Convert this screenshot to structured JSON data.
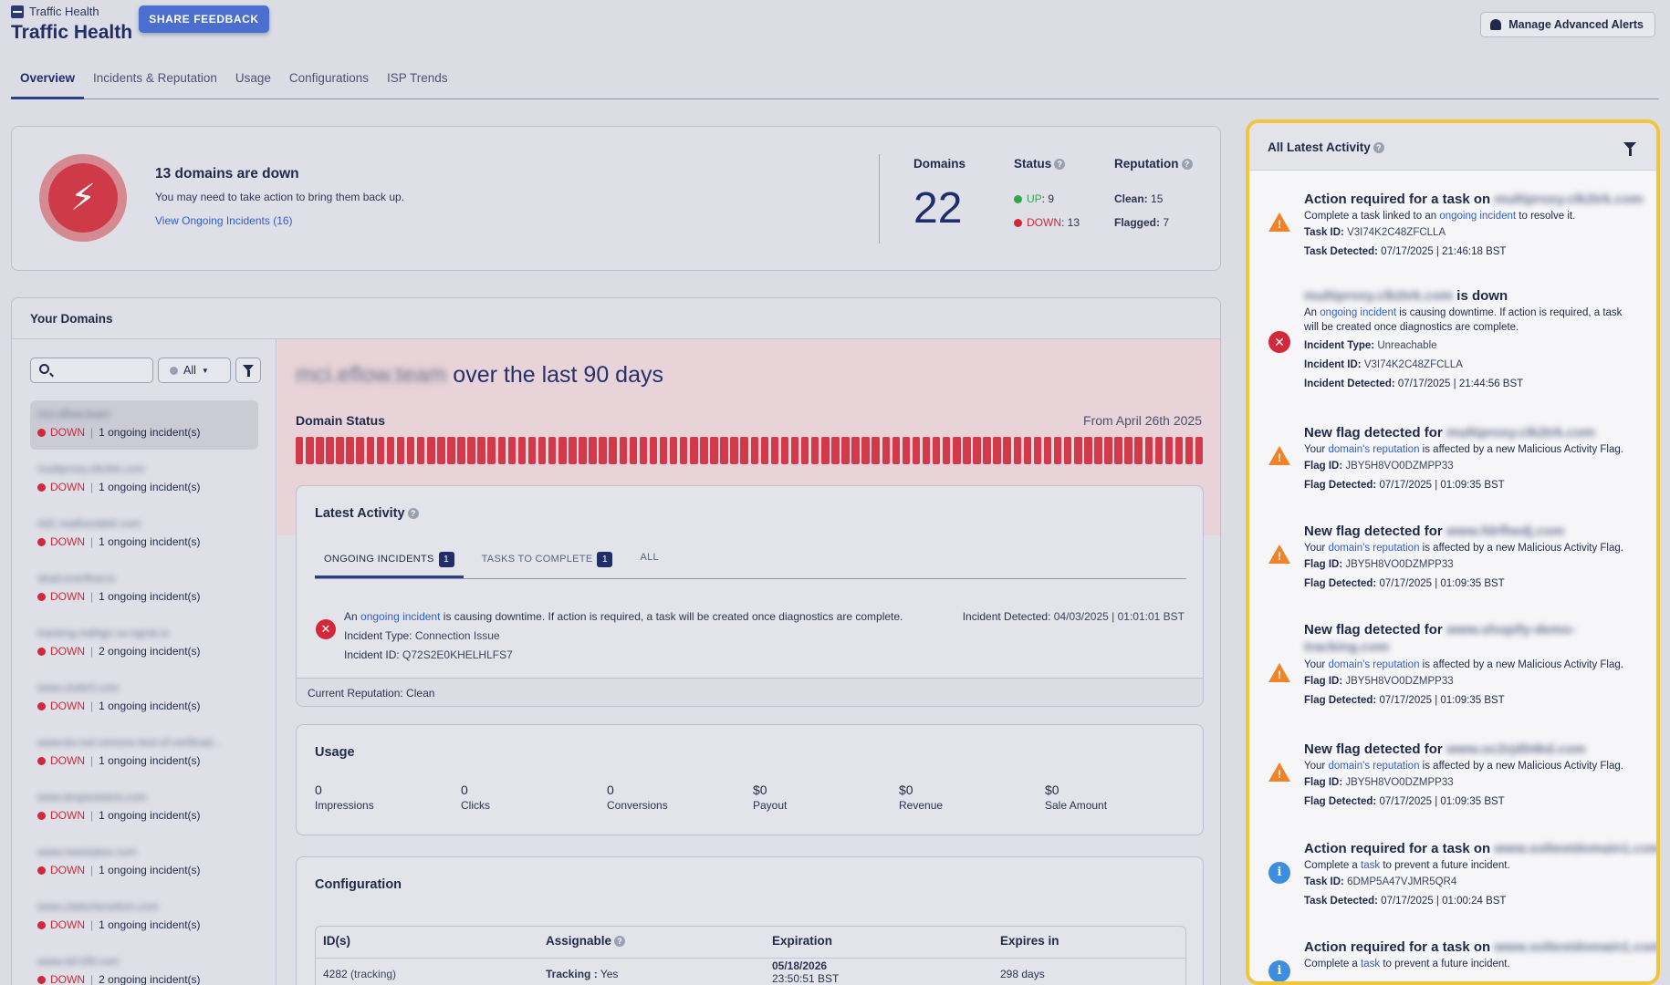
{
  "header": {
    "breadcrumb": "Traffic Health",
    "title": "Traffic Health",
    "feedback_label": "SHARE FEEDBACK",
    "alerts_label": "Manage Advanced Alerts"
  },
  "tabs": [
    "Overview",
    "Incidents & Reputation",
    "Usage",
    "Configurations",
    "ISP Trends"
  ],
  "summary": {
    "title": "13 domains are down",
    "subtitle": "You may need to take action to bring them back up.",
    "link": "View Ongoing Incidents (16)",
    "domains_label": "Domains",
    "domains_count": "22",
    "status_label": "Status",
    "up_label": "UP",
    "up_count": ": 9",
    "down_label": "DOWN",
    "down_count": ": 13",
    "reputation_label": "Reputation",
    "clean_label": "Clean:",
    "clean_count": "15",
    "flagged_label": "Flagged:",
    "flagged_count": "7",
    "colors": {
      "down": "#d2283a",
      "up": "#2ea84a"
    }
  },
  "domains": {
    "header": "Your Domains",
    "filter_value": "All",
    "items": [
      {
        "name": "mci.eflow.team",
        "status": "DOWN",
        "incidents": "1 ongoing incident(s)",
        "selected": true
      },
      {
        "name": "multiproxy.clk2trk.com",
        "status": "DOWN",
        "incidents": "1 ongoing incident(s)"
      },
      {
        "name": "rtd1.realfunobtrk.com",
        "status": "DOWN",
        "incidents": "1 ongoing incident(s)"
      },
      {
        "name": "skad.everflow.io",
        "status": "DOWN",
        "incidents": "1 ongoing incident(s)"
      },
      {
        "name": "tracking.mdrtgn.us.ngrok.io",
        "status": "DOWN",
        "incidents": "2 ongoing incident(s)"
      },
      {
        "name": "www.clcktr3.com",
        "status": "DOWN",
        "incidents": "1 ongoing incident(s)"
      },
      {
        "name": "www.do-not-remove-test-of-verificati...",
        "status": "DOWN",
        "incidents": "1 ongoing incident(s)"
      },
      {
        "name": "www.dropexistest.com",
        "status": "DOWN",
        "incidents": "1 ongoing incident(s)"
      },
      {
        "name": "www.newstatus.com",
        "status": "DOWN",
        "incidents": "1 ongoing incident(s)"
      },
      {
        "name": "www.clarkchenefom.com",
        "status": "DOWN",
        "incidents": "1 ongoing incident(s)"
      },
      {
        "name": "www.otrr1f9.com",
        "status": "DOWN",
        "incidents": "2 ongoing incident(s)"
      }
    ]
  },
  "detail": {
    "domain": "mci.eflow.team",
    "title_suffix": "over the last 90 days",
    "status_label": "Domain Status",
    "from_label": "From April 26th 2025",
    "latest_activity": {
      "title": "Latest Activity",
      "tabs": [
        {
          "label": "ONGOING INCIDENTS",
          "badge": "1"
        },
        {
          "label": "TASKS TO COMPLETE",
          "badge": "1"
        },
        {
          "label": "ALL"
        }
      ],
      "text_pre": "An",
      "text_link": "ongoing incident",
      "text_post": "is causing downtime. If action is required, a task will be created once diagnostics are complete.",
      "incident_type_label": "Incident Type:",
      "incident_type": "Connection Issue",
      "incident_id_label": "Incident ID:",
      "incident_id": "Q72S2E0KHELHLFS7",
      "detected_label": "Incident Detected:",
      "detected_value": "04/03/2025  |  01:01:01 BST",
      "footer": "Current Reputation: Clean"
    },
    "usage": {
      "title": "Usage",
      "items": [
        {
          "value": "0",
          "label": "Impressions"
        },
        {
          "value": "0",
          "label": "Clicks"
        },
        {
          "value": "0",
          "label": "Conversions"
        },
        {
          "value": "$0",
          "label": "Payout"
        },
        {
          "value": "$0",
          "label": "Revenue"
        },
        {
          "value": "$0",
          "label": "Sale Amount"
        }
      ]
    },
    "configuration": {
      "title": "Configuration",
      "headers": [
        "ID(s)",
        "Assignable",
        "Expiration",
        "Expires in"
      ],
      "row": {
        "id": "4282",
        "id_type": "(tracking)",
        "assignable_label": "Tracking :",
        "assignable_value": "Yes",
        "expiration_date": "05/18/2026",
        "expiration_time": "23:50:51 BST",
        "expires_in": "298 days"
      }
    }
  },
  "activity": {
    "title": "All Latest Activity",
    "items": [
      {
        "icon": "warning",
        "title": "Action required for a task on",
        "domain": "multiproxy.clk2trk.com",
        "line1_pre": "Complete a task linked to an",
        "line1_link": "ongoing incident",
        "line1_post": "to resolve it.",
        "id_label": "Task ID:",
        "id": "V3I74K2C48ZFCLLA",
        "date_label": "Task Detected:",
        "date": "07/17/2025  |  21:46:18 BST"
      },
      {
        "icon": "error",
        "title": "is down",
        "domain": "multiproxy.clk2trk.com",
        "line1_pre": "An",
        "line1_link": "ongoing incident",
        "line1_post": "is causing downtime. If action is required, a task",
        "line2": "will be created once diagnostics are complete.",
        "type_label": "Incident Type:",
        "type": "Unreachable",
        "id_label": "Incident ID:",
        "id": "V3I74K2C48ZFCLLA",
        "date_label": "Incident Detected:",
        "date": "07/17/2025  |  21:44:56 BST"
      },
      {
        "icon": "warning",
        "title": "New flag detected for",
        "domain": "multiproxy.clk2trk.com",
        "line1_pre": "Your",
        "line1_link": "domain's reputation",
        "line1_post": "is affected by a new Malicious Activity Flag.",
        "id_label": "Flag ID:",
        "id": "JBY5H8VO0DZMPP33",
        "date_label": "Flag Detected:",
        "date": "07/17/2025  |  01:09:35 BST"
      },
      {
        "icon": "warning",
        "title": "New flag detected for",
        "domain": "www.fdrfhedj.com",
        "line1_pre": "Your",
        "line1_link": "domain's reputation",
        "line1_post": "is affected by a new Malicious Activity Flag.",
        "id_label": "Flag ID:",
        "id": "JBY5H8VO0DZMPP33",
        "date_label": "Flag Detected:",
        "date": "07/17/2025  |  01:09:35 BST"
      },
      {
        "icon": "warning",
        "title": "New flag detected for",
        "domain": "www.shopify-demo-tracking.com",
        "line1_pre": "Your",
        "line1_link": "domain's reputation",
        "line1_post": "is affected by a new Malicious Activity Flag.",
        "id_label": "Flag ID:",
        "id": "JBY5H8VO0DZMPP33",
        "date_label": "Flag Detected:",
        "date": "07/17/2025  |  01:09:35 BST"
      },
      {
        "icon": "warning",
        "title": "New flag detected for",
        "domain": "www.oc2rjd04kd.com",
        "line1_pre": "Your",
        "line1_link": "domain's reputation",
        "line1_post": "is affected by a new Malicious Activity Flag.",
        "id_label": "Flag ID:",
        "id": "JBY5H8VO0DZMPP33",
        "date_label": "Flag Detected:",
        "date": "07/17/2025  |  01:09:35 BST"
      },
      {
        "icon": "info",
        "title": "Action required for a task on",
        "domain": "www.soltestdomain1.com",
        "line1_pre": "Complete a",
        "line1_link": "task",
        "line1_post": "to prevent a future incident.",
        "id_label": "Task ID:",
        "id": "6DMP5A47VJMR5QR4",
        "date_label": "Task Detected:",
        "date": "07/17/2025  |  01:00:24 BST"
      },
      {
        "icon": "info",
        "title": "Action required for a task on",
        "domain": "www.soltestdomain1.com",
        "line1_pre": "Complete a",
        "line1_link": "task",
        "line1_post": "to prevent a future incident."
      }
    ]
  }
}
